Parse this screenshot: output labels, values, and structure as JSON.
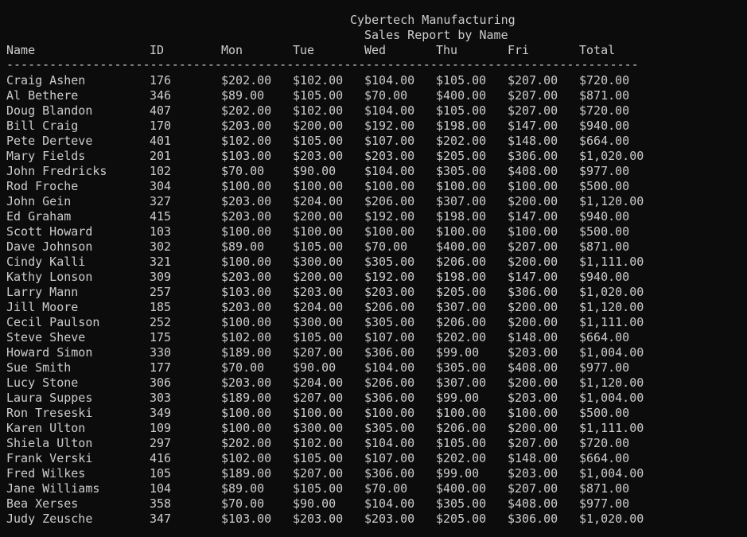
{
  "report": {
    "company": "Cybertech Manufacturing",
    "subtitle": "Sales Report by Name",
    "divider": "----------------------------------------------------------------------------------------"
  },
  "columns": {
    "name": "Name",
    "id": "ID",
    "mon": "Mon",
    "tue": "Tue",
    "wed": "Wed",
    "thu": "Thu",
    "fri": "Fri",
    "total": "Total"
  },
  "rows": [
    {
      "name": "Craig Ashen",
      "id": "176",
      "mon": "$202.00",
      "tue": "$102.00",
      "wed": "$104.00",
      "thu": "$105.00",
      "fri": "$207.00",
      "total": "$720.00"
    },
    {
      "name": "Al Bethere",
      "id": "346",
      "mon": "$89.00",
      "tue": "$105.00",
      "wed": "$70.00",
      "thu": "$400.00",
      "fri": "$207.00",
      "total": "$871.00"
    },
    {
      "name": "Doug Blandon",
      "id": "407",
      "mon": "$202.00",
      "tue": "$102.00",
      "wed": "$104.00",
      "thu": "$105.00",
      "fri": "$207.00",
      "total": "$720.00"
    },
    {
      "name": "Bill Craig",
      "id": "170",
      "mon": "$203.00",
      "tue": "$200.00",
      "wed": "$192.00",
      "thu": "$198.00",
      "fri": "$147.00",
      "total": "$940.00"
    },
    {
      "name": "Pete Derteve",
      "id": "401",
      "mon": "$102.00",
      "tue": "$105.00",
      "wed": "$107.00",
      "thu": "$202.00",
      "fri": "$148.00",
      "total": "$664.00"
    },
    {
      "name": "Mary Fields",
      "id": "201",
      "mon": "$103.00",
      "tue": "$203.00",
      "wed": "$203.00",
      "thu": "$205.00",
      "fri": "$306.00",
      "total": "$1,020.00"
    },
    {
      "name": "John Fredricks",
      "id": "102",
      "mon": "$70.00",
      "tue": "$90.00",
      "wed": "$104.00",
      "thu": "$305.00",
      "fri": "$408.00",
      "total": "$977.00"
    },
    {
      "name": "Rod Froche",
      "id": "304",
      "mon": "$100.00",
      "tue": "$100.00",
      "wed": "$100.00",
      "thu": "$100.00",
      "fri": "$100.00",
      "total": "$500.00"
    },
    {
      "name": "John Gein",
      "id": "327",
      "mon": "$203.00",
      "tue": "$204.00",
      "wed": "$206.00",
      "thu": "$307.00",
      "fri": "$200.00",
      "total": "$1,120.00"
    },
    {
      "name": "Ed Graham",
      "id": "415",
      "mon": "$203.00",
      "tue": "$200.00",
      "wed": "$192.00",
      "thu": "$198.00",
      "fri": "$147.00",
      "total": "$940.00"
    },
    {
      "name": "Scott Howard",
      "id": "103",
      "mon": "$100.00",
      "tue": "$100.00",
      "wed": "$100.00",
      "thu": "$100.00",
      "fri": "$100.00",
      "total": "$500.00"
    },
    {
      "name": "Dave Johnson",
      "id": "302",
      "mon": "$89.00",
      "tue": "$105.00",
      "wed": "$70.00",
      "thu": "$400.00",
      "fri": "$207.00",
      "total": "$871.00"
    },
    {
      "name": "Cindy Kalli",
      "id": "321",
      "mon": "$100.00",
      "tue": "$300.00",
      "wed": "$305.00",
      "thu": "$206.00",
      "fri": "$200.00",
      "total": "$1,111.00"
    },
    {
      "name": "Kathy Lonson",
      "id": "309",
      "mon": "$203.00",
      "tue": "$200.00",
      "wed": "$192.00",
      "thu": "$198.00",
      "fri": "$147.00",
      "total": "$940.00"
    },
    {
      "name": "Larry Mann",
      "id": "257",
      "mon": "$103.00",
      "tue": "$203.00",
      "wed": "$203.00",
      "thu": "$205.00",
      "fri": "$306.00",
      "total": "$1,020.00"
    },
    {
      "name": "Jill Moore",
      "id": "185",
      "mon": "$203.00",
      "tue": "$204.00",
      "wed": "$206.00",
      "thu": "$307.00",
      "fri": "$200.00",
      "total": "$1,120.00"
    },
    {
      "name": "Cecil Paulson",
      "id": "252",
      "mon": "$100.00",
      "tue": "$300.00",
      "wed": "$305.00",
      "thu": "$206.00",
      "fri": "$200.00",
      "total": "$1,111.00"
    },
    {
      "name": "Steve Sheve",
      "id": "175",
      "mon": "$102.00",
      "tue": "$105.00",
      "wed": "$107.00",
      "thu": "$202.00",
      "fri": "$148.00",
      "total": "$664.00"
    },
    {
      "name": "Howard Simon",
      "id": "330",
      "mon": "$189.00",
      "tue": "$207.00",
      "wed": "$306.00",
      "thu": "$99.00",
      "fri": "$203.00",
      "total": "$1,004.00"
    },
    {
      "name": "Sue Smith",
      "id": "177",
      "mon": "$70.00",
      "tue": "$90.00",
      "wed": "$104.00",
      "thu": "$305.00",
      "fri": "$408.00",
      "total": "$977.00"
    },
    {
      "name": "Lucy Stone",
      "id": "306",
      "mon": "$203.00",
      "tue": "$204.00",
      "wed": "$206.00",
      "thu": "$307.00",
      "fri": "$200.00",
      "total": "$1,120.00"
    },
    {
      "name": "Laura Suppes",
      "id": "303",
      "mon": "$189.00",
      "tue": "$207.00",
      "wed": "$306.00",
      "thu": "$99.00",
      "fri": "$203.00",
      "total": "$1,004.00"
    },
    {
      "name": "Ron Treseski",
      "id": "349",
      "mon": "$100.00",
      "tue": "$100.00",
      "wed": "$100.00",
      "thu": "$100.00",
      "fri": "$100.00",
      "total": "$500.00"
    },
    {
      "name": "Karen Ulton",
      "id": "109",
      "mon": "$100.00",
      "tue": "$300.00",
      "wed": "$305.00",
      "thu": "$206.00",
      "fri": "$200.00",
      "total": "$1,111.00"
    },
    {
      "name": "Shiela Ulton",
      "id": "297",
      "mon": "$202.00",
      "tue": "$102.00",
      "wed": "$104.00",
      "thu": "$105.00",
      "fri": "$207.00",
      "total": "$720.00"
    },
    {
      "name": "Frank Verski",
      "id": "416",
      "mon": "$102.00",
      "tue": "$105.00",
      "wed": "$107.00",
      "thu": "$202.00",
      "fri": "$148.00",
      "total": "$664.00"
    },
    {
      "name": "Fred Wilkes",
      "id": "105",
      "mon": "$189.00",
      "tue": "$207.00",
      "wed": "$306.00",
      "thu": "$99.00",
      "fri": "$203.00",
      "total": "$1,004.00"
    },
    {
      "name": "Jane Williams",
      "id": "104",
      "mon": "$89.00",
      "tue": "$105.00",
      "wed": "$70.00",
      "thu": "$400.00",
      "fri": "$207.00",
      "total": "$871.00"
    },
    {
      "name": "Bea Xerses",
      "id": "358",
      "mon": "$70.00",
      "tue": "$90.00",
      "wed": "$104.00",
      "thu": "$305.00",
      "fri": "$408.00",
      "total": "$977.00"
    },
    {
      "name": "Judy Zeusche",
      "id": "347",
      "mon": "$103.00",
      "tue": "$203.00",
      "wed": "$203.00",
      "thu": "$205.00",
      "fri": "$306.00",
      "total": "$1,020.00"
    }
  ]
}
